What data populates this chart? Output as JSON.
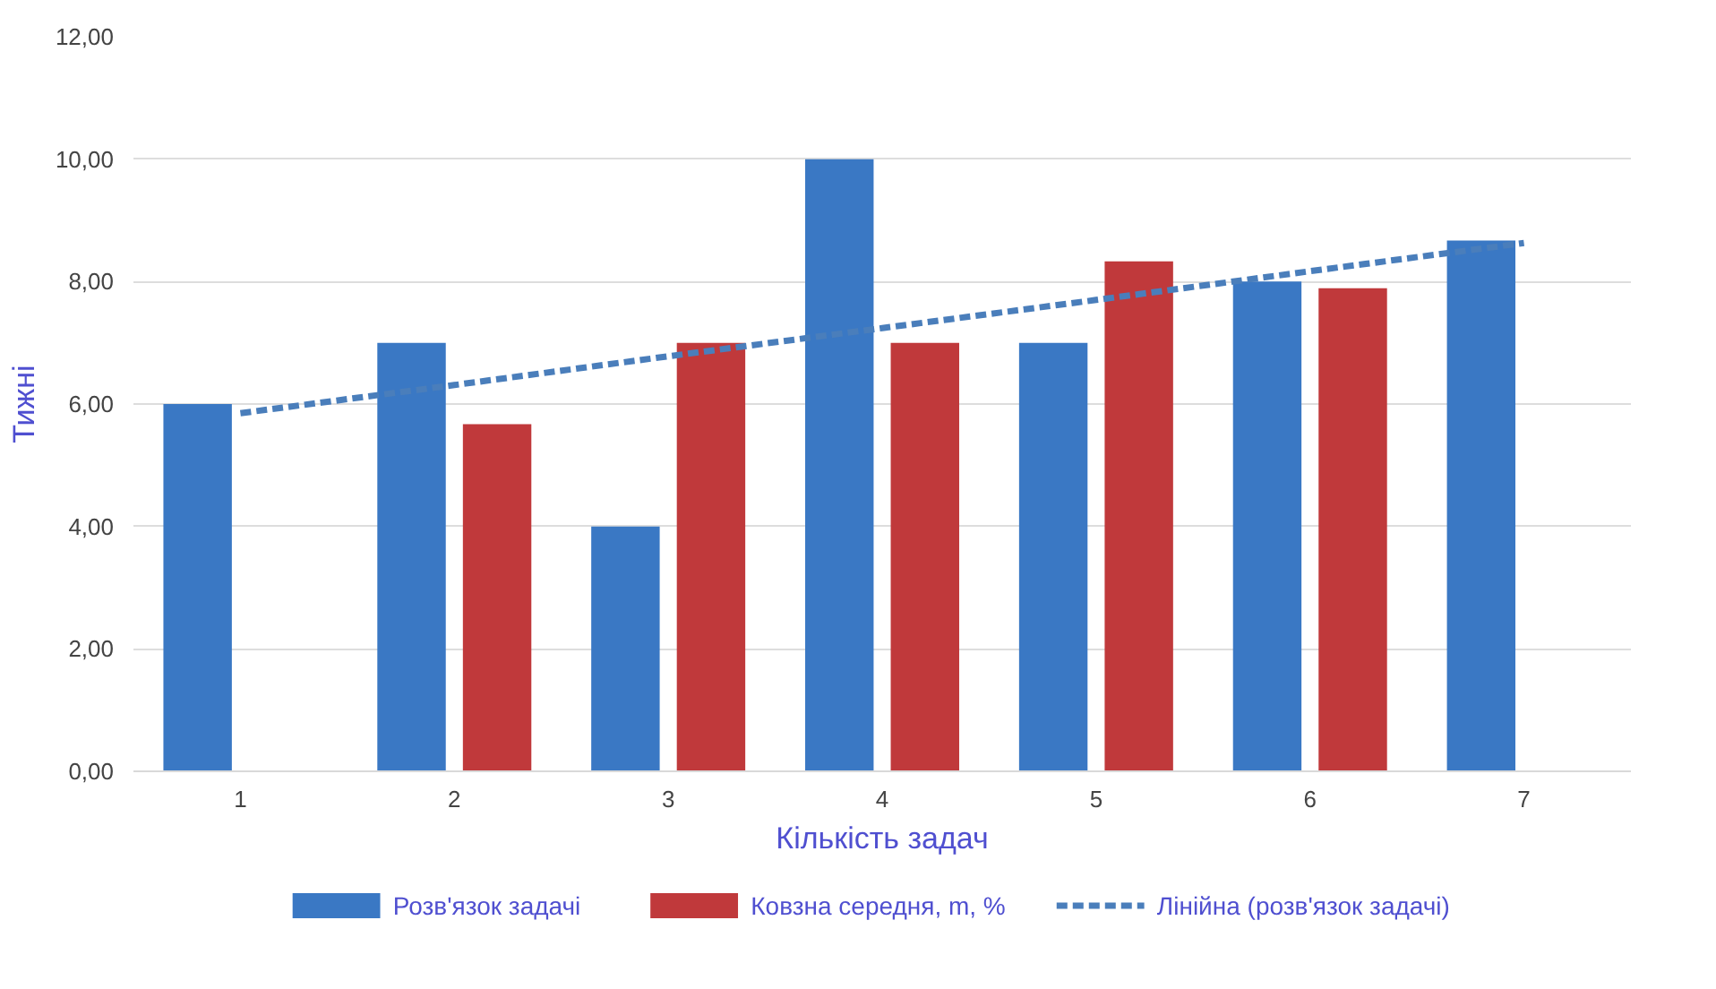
{
  "chart_data": {
    "type": "bar",
    "xlabel": "Кількість задач",
    "ylabel": "Тижні",
    "categories": [
      "1",
      "2",
      "3",
      "4",
      "5",
      "6",
      "7"
    ],
    "series": [
      {
        "name": "Розв'язок задачі",
        "color": "#3a78c4",
        "values": [
          6,
          7,
          4,
          10,
          7,
          8,
          8.67
        ]
      },
      {
        "name": "Ковзна середня, m, %",
        "color": "#c0393b",
        "values": [
          null,
          5.67,
          7,
          7,
          8.33,
          7.89,
          null
        ]
      },
      {
        "name": "Лінійна (розв'язок задачі)",
        "type": "line",
        "line_style": "dashed",
        "color": "#4a7ebb",
        "values": [
          5.85,
          6.31,
          6.78,
          7.24,
          7.7,
          8.17,
          8.63
        ]
      }
    ],
    "ylim": [
      0,
      12
    ],
    "yticks": [
      {
        "value": 0,
        "label": "0,00"
      },
      {
        "value": 2,
        "label": "2,00"
      },
      {
        "value": 4,
        "label": "4,00"
      },
      {
        "value": 6,
        "label": "6,00"
      },
      {
        "value": 8,
        "label": "8,00"
      },
      {
        "value": 10,
        "label": "10,00"
      },
      {
        "value": 12,
        "label": "12,00"
      }
    ],
    "grid": "y",
    "legend": "bottom"
  }
}
